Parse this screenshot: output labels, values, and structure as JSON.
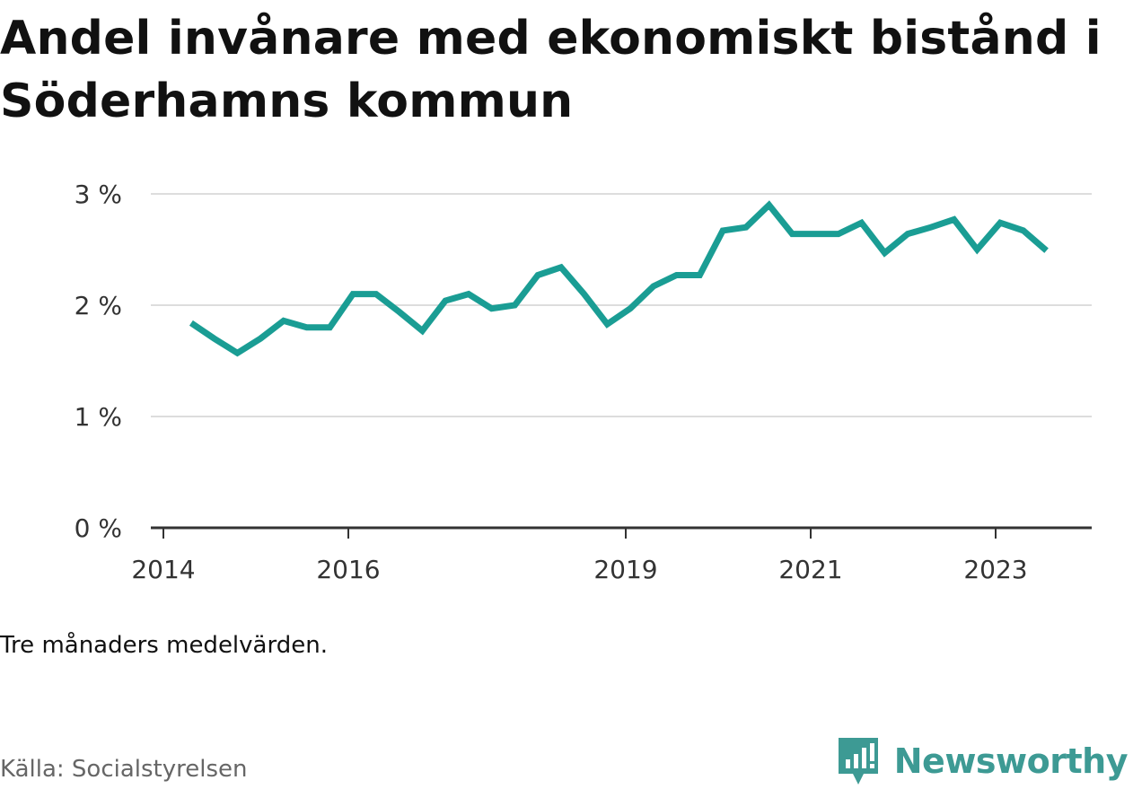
{
  "title": "Andel invånare med ekonomiskt bistånd i Söderhamns kommun",
  "note": "Tre månaders medelvärden.",
  "source": "Källa: Socialstyrelsen",
  "brand": {
    "name": "Newsworthy",
    "icon": "newsworthy-logo-icon",
    "color": "#3d9a94"
  },
  "chart_data": {
    "type": "line",
    "xlabel": "",
    "ylabel": "",
    "ylim": [
      0,
      3
    ],
    "y_ticks": [
      "0 %",
      "1 %",
      "2 %",
      "3 %"
    ],
    "y_tick_values": [
      0,
      1,
      2,
      3
    ],
    "x_ticks": [
      "2014",
      "2016",
      "2019",
      "2021",
      "2023"
    ],
    "x_tick_values": [
      2014.0,
      2016.0,
      2019.0,
      2021.0,
      2023.0
    ],
    "grid": true,
    "legend": "none",
    "line_color": "#1a9d94",
    "series": [
      {
        "x": [
          2014.3,
          2014.55,
          2014.8,
          2015.05,
          2015.3,
          2015.55,
          2015.8,
          2016.05,
          2016.3,
          2016.55,
          2016.8,
          2017.05,
          2017.3,
          2017.55,
          2017.8,
          2018.05,
          2018.3,
          2018.55,
          2018.8,
          2019.05,
          2019.3,
          2019.55,
          2019.8,
          2020.05,
          2020.3,
          2020.55,
          2020.8,
          2021.05,
          2021.3,
          2021.55,
          2021.8,
          2022.05,
          2022.3,
          2022.55,
          2022.8,
          2023.05,
          2023.3,
          2023.55
        ],
        "values": [
          1.84,
          1.7,
          1.57,
          1.7,
          1.86,
          1.8,
          1.8,
          2.1,
          2.1,
          1.94,
          1.77,
          2.04,
          2.1,
          1.97,
          2.0,
          2.27,
          2.34,
          2.1,
          1.83,
          1.97,
          2.17,
          2.27,
          2.27,
          2.67,
          2.7,
          2.9,
          2.64,
          2.64,
          2.64,
          2.74,
          2.47,
          2.64,
          2.7,
          2.77,
          2.5,
          2.74,
          2.67,
          2.49
        ]
      }
    ]
  }
}
